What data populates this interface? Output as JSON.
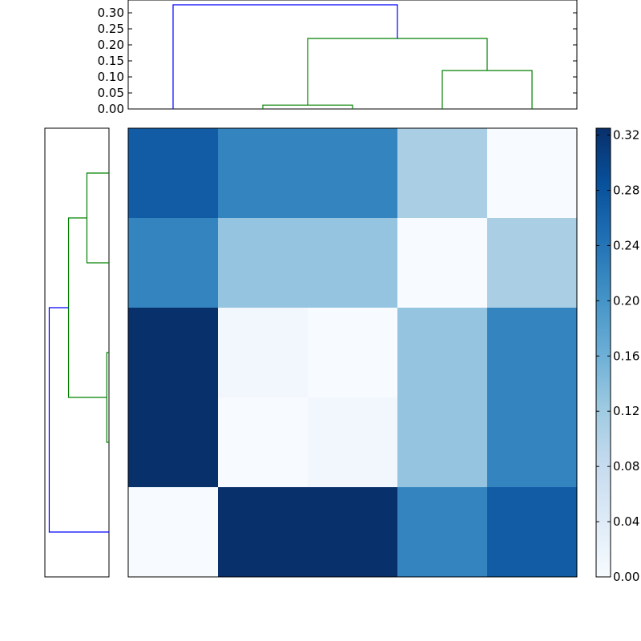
{
  "colors": {
    "cluster_link": "#008000",
    "root_link": "#0000ff",
    "cmap": [
      "#f7fbff",
      "#deebf7",
      "#c6dbef",
      "#9ecae1",
      "#6baed6",
      "#4292c6",
      "#2171b5",
      "#08519c",
      "#08306b"
    ]
  },
  "chart_data": [
    {
      "type": "dendrogram",
      "orientation": "top",
      "title": "",
      "xlabel": "",
      "ylabel": "",
      "ylim": [
        0,
        0.34
      ],
      "yticks": [
        "0.00",
        "0.05",
        "0.10",
        "0.15",
        "0.20",
        "0.25",
        "0.30"
      ],
      "leaves": 5,
      "links": [
        {
          "left": 1,
          "right": 2,
          "height": 0.012,
          "color": "cluster_link"
        },
        {
          "left": 3,
          "right": 4,
          "height": 0.12,
          "color": "cluster_link"
        },
        {
          "left": "1-2",
          "right": "3-4",
          "height": 0.22,
          "color": "cluster_link"
        },
        {
          "left": 0,
          "right": "1-2-3-4",
          "height": 0.325,
          "color": "root_link"
        }
      ]
    },
    {
      "type": "dendrogram",
      "orientation": "left",
      "leaves": 5,
      "links": [
        {
          "left": 2,
          "right": 3,
          "height": 0.012,
          "color": "cluster_link"
        },
        {
          "left": 0,
          "right": 1,
          "height": 0.12,
          "color": "cluster_link"
        },
        {
          "left": "0-1",
          "right": "2-3",
          "height": 0.22,
          "color": "cluster_link"
        },
        {
          "left": "0-1-2-3",
          "right": 4,
          "height": 0.325,
          "color": "root_link"
        }
      ]
    },
    {
      "type": "heatmap",
      "rows": 5,
      "cols": 5,
      "values": [
        [
          0.27,
          0.22,
          0.22,
          0.11,
          0.0
        ],
        [
          0.22,
          0.13,
          0.13,
          0.0,
          0.11
        ],
        [
          0.325,
          0.01,
          0.0,
          0.13,
          0.22
        ],
        [
          0.325,
          0.0,
          0.01,
          0.13,
          0.22
        ],
        [
          0.0,
          0.325,
          0.325,
          0.22,
          0.27
        ]
      ],
      "vmin": 0.0,
      "vmax": 0.325,
      "colorbar_ticks": [
        "0.00",
        "0.04",
        "0.08",
        "0.12",
        "0.16",
        "0.20",
        "0.24",
        "0.28",
        "0.32"
      ]
    }
  ]
}
